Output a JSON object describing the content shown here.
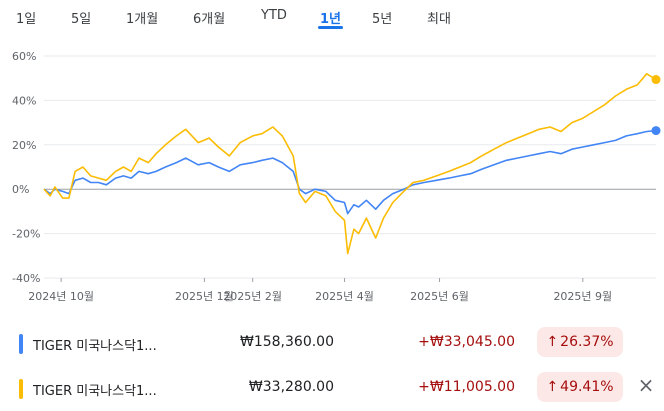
{
  "tabs": [
    {
      "label": "1일"
    },
    {
      "label": "5일"
    },
    {
      "label": "1개월"
    },
    {
      "label": "6개월"
    },
    {
      "label": "YTD"
    },
    {
      "label": "1년",
      "active": true
    },
    {
      "label": "5년"
    },
    {
      "label": "최대"
    }
  ],
  "colors": {
    "blue": "#4285f4",
    "yellow": "#fbbc04",
    "grid": "#e8eaed",
    "zero": "#9aa0a6"
  },
  "chart_data": {
    "type": "line",
    "y_unit": "%",
    "ylim": [
      -40,
      60
    ],
    "yticks": [
      "60%",
      "40%",
      "20%",
      "0%",
      "-20%",
      "-40%"
    ],
    "x_ticks": [
      {
        "label": "2024년 10월",
        "date": "2024-10-01"
      },
      {
        "label": "2025년 1월",
        "date": "2025-01-01"
      },
      {
        "label": "2025년 2월",
        "date": "2025-02-01"
      },
      {
        "label": "2025년 4월",
        "date": "2025-04-01"
      },
      {
        "label": "2025년 6월",
        "date": "2025-06-01"
      },
      {
        "label": "2025년 9월",
        "date": "2025-09-01"
      }
    ],
    "series": [
      {
        "name": "TIGER 미국나스닥1...",
        "color": "#4285f4",
        "points": [
          [
            "2024-09-20",
            0
          ],
          [
            "2024-09-24",
            -2
          ],
          [
            "2024-09-27",
            0
          ],
          [
            "2024-10-02",
            -1
          ],
          [
            "2024-10-06",
            -2
          ],
          [
            "2024-10-10",
            4
          ],
          [
            "2024-10-15",
            5
          ],
          [
            "2024-10-20",
            3
          ],
          [
            "2024-10-25",
            3
          ],
          [
            "2024-10-30",
            2
          ],
          [
            "2024-11-05",
            5
          ],
          [
            "2024-11-10",
            6
          ],
          [
            "2024-11-15",
            5
          ],
          [
            "2024-11-20",
            8
          ],
          [
            "2024-11-26",
            7
          ],
          [
            "2024-12-01",
            8
          ],
          [
            "2024-12-07",
            10
          ],
          [
            "2024-12-14",
            12
          ],
          [
            "2024-12-20",
            14
          ],
          [
            "2024-12-28",
            11
          ],
          [
            "2025-01-04",
            12
          ],
          [
            "2025-01-10",
            10
          ],
          [
            "2025-01-17",
            8
          ],
          [
            "2025-01-24",
            11
          ],
          [
            "2025-02-01",
            12
          ],
          [
            "2025-02-07",
            13
          ],
          [
            "2025-02-14",
            14
          ],
          [
            "2025-02-20",
            12
          ],
          [
            "2025-02-27",
            8
          ],
          [
            "2025-03-03",
            0
          ],
          [
            "2025-03-07",
            -2
          ],
          [
            "2025-03-13",
            0
          ],
          [
            "2025-03-20",
            -1
          ],
          [
            "2025-03-26",
            -5
          ],
          [
            "2025-04-01",
            -6
          ],
          [
            "2025-04-03",
            -11
          ],
          [
            "2025-04-07",
            -7
          ],
          [
            "2025-04-10",
            -8
          ],
          [
            "2025-04-15",
            -5
          ],
          [
            "2025-04-21",
            -9
          ],
          [
            "2025-04-26",
            -5
          ],
          [
            "2025-05-02",
            -2
          ],
          [
            "2025-05-09",
            0
          ],
          [
            "2025-05-15",
            2
          ],
          [
            "2025-05-22",
            3
          ],
          [
            "2025-05-30",
            4
          ],
          [
            "2025-06-07",
            5
          ],
          [
            "2025-06-14",
            6
          ],
          [
            "2025-06-21",
            7
          ],
          [
            "2025-06-28",
            9
          ],
          [
            "2025-07-06",
            11
          ],
          [
            "2025-07-14",
            13
          ],
          [
            "2025-07-21",
            14
          ],
          [
            "2025-07-28",
            15
          ],
          [
            "2025-08-04",
            16
          ],
          [
            "2025-08-11",
            17
          ],
          [
            "2025-08-18",
            16
          ],
          [
            "2025-08-25",
            18
          ],
          [
            "2025-09-01",
            19
          ],
          [
            "2025-09-08",
            20
          ],
          [
            "2025-09-15",
            21
          ],
          [
            "2025-09-22",
            22
          ],
          [
            "2025-09-29",
            24
          ],
          [
            "2025-10-06",
            25
          ],
          [
            "2025-10-12",
            26
          ],
          [
            "2025-10-18",
            26.4
          ]
        ]
      },
      {
        "name": "TIGER 미국나스닥1...",
        "color": "#fbbc04",
        "points": [
          [
            "2024-09-20",
            0
          ],
          [
            "2024-09-24",
            -3
          ],
          [
            "2024-09-27",
            1
          ],
          [
            "2024-10-02",
            -4
          ],
          [
            "2024-10-06",
            -4
          ],
          [
            "2024-10-10",
            8
          ],
          [
            "2024-10-15",
            10
          ],
          [
            "2024-10-20",
            6
          ],
          [
            "2024-10-25",
            5
          ],
          [
            "2024-10-30",
            4
          ],
          [
            "2024-11-05",
            8
          ],
          [
            "2024-11-10",
            10
          ],
          [
            "2024-11-15",
            8
          ],
          [
            "2024-11-20",
            14
          ],
          [
            "2024-11-26",
            12
          ],
          [
            "2024-12-01",
            16
          ],
          [
            "2024-12-07",
            20
          ],
          [
            "2024-12-14",
            24
          ],
          [
            "2024-12-20",
            27
          ],
          [
            "2024-12-28",
            21
          ],
          [
            "2025-01-04",
            23
          ],
          [
            "2025-01-10",
            19
          ],
          [
            "2025-01-17",
            15
          ],
          [
            "2025-01-24",
            21
          ],
          [
            "2025-02-01",
            24
          ],
          [
            "2025-02-07",
            25
          ],
          [
            "2025-02-14",
            28
          ],
          [
            "2025-02-20",
            24
          ],
          [
            "2025-02-27",
            15
          ],
          [
            "2025-03-03",
            -2
          ],
          [
            "2025-03-07",
            -6
          ],
          [
            "2025-03-13",
            -1
          ],
          [
            "2025-03-20",
            -3
          ],
          [
            "2025-03-26",
            -10
          ],
          [
            "2025-04-01",
            -14
          ],
          [
            "2025-04-03",
            -29
          ],
          [
            "2025-04-07",
            -18
          ],
          [
            "2025-04-10",
            -20
          ],
          [
            "2025-04-15",
            -13
          ],
          [
            "2025-04-21",
            -22
          ],
          [
            "2025-04-26",
            -13
          ],
          [
            "2025-05-02",
            -6
          ],
          [
            "2025-05-09",
            -1
          ],
          [
            "2025-05-15",
            3
          ],
          [
            "2025-05-22",
            4
          ],
          [
            "2025-05-30",
            6
          ],
          [
            "2025-06-07",
            8
          ],
          [
            "2025-06-14",
            10
          ],
          [
            "2025-06-21",
            12
          ],
          [
            "2025-06-28",
            15
          ],
          [
            "2025-07-06",
            18
          ],
          [
            "2025-07-14",
            21
          ],
          [
            "2025-07-21",
            23
          ],
          [
            "2025-07-28",
            25
          ],
          [
            "2025-08-04",
            27
          ],
          [
            "2025-08-11",
            28
          ],
          [
            "2025-08-18",
            26
          ],
          [
            "2025-08-25",
            30
          ],
          [
            "2025-09-01",
            32
          ],
          [
            "2025-09-08",
            35
          ],
          [
            "2025-09-15",
            38
          ],
          [
            "2025-09-22",
            42
          ],
          [
            "2025-09-29",
            45
          ],
          [
            "2025-10-06",
            47
          ],
          [
            "2025-10-12",
            52
          ],
          [
            "2025-10-18",
            49.4
          ]
        ]
      }
    ]
  },
  "rows": [
    {
      "name": "TIGER 미국나스닥1...",
      "color": "#4285f4",
      "price": "₩158,360.00",
      "change": "+₩33,045.00",
      "pct": "26.37%",
      "arrow": "↑"
    },
    {
      "name": "TIGER 미국나스닥1...",
      "color": "#fbbc04",
      "price": "₩33,280.00",
      "change": "+₩11,005.00",
      "pct": "49.41%",
      "arrow": "↑",
      "close_icon": "×"
    }
  ]
}
